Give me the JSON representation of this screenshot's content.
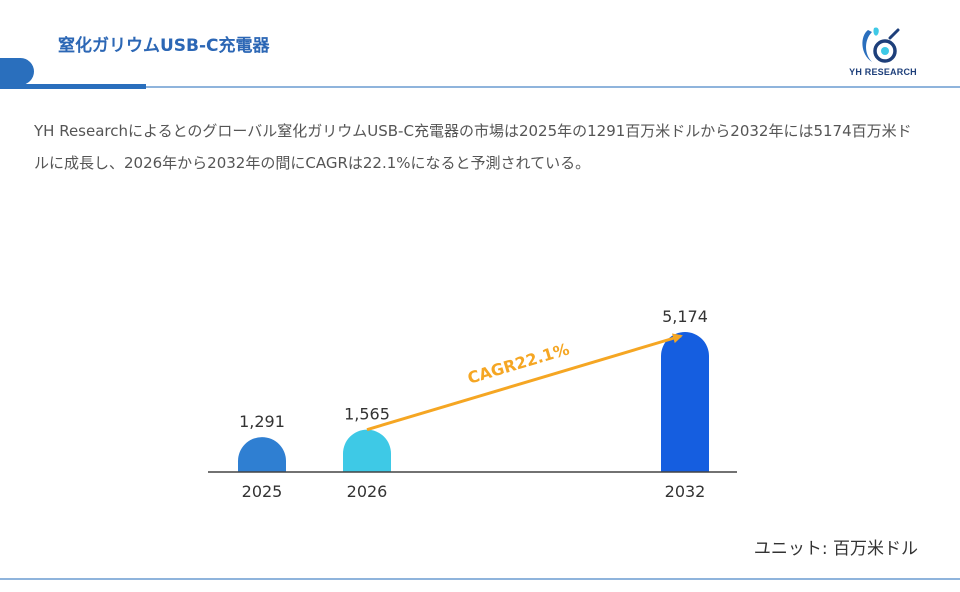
{
  "header": {
    "title": "窒化ガリウムUSB-C充電器",
    "logo_text": "YH RESEARCH"
  },
  "description": "YH Researchによるとのグローバル窒化ガリウムUSB-C充電器の市場は2025年の1291百万米ドルから2032年には5174百万米ドルに成長し、2026年から2032年の間にCAGRは22.1%になると予測されている。",
  "chart_data": {
    "type": "bar",
    "categories": [
      "2025",
      "2026",
      "2032"
    ],
    "values": [
      1291,
      1565,
      5174
    ],
    "value_labels": [
      "1,291",
      "1,565",
      "5,174"
    ],
    "bar_colors": [
      "#2f7fd2",
      "#3ec9e6",
      "#155ee0"
    ],
    "annotation": "CAGR22.1%",
    "annotation_color": "#f5a623",
    "title": "",
    "xlabel": "",
    "ylabel": "",
    "grid": false
  },
  "unit_label": "ユニット: 百万米ドル"
}
